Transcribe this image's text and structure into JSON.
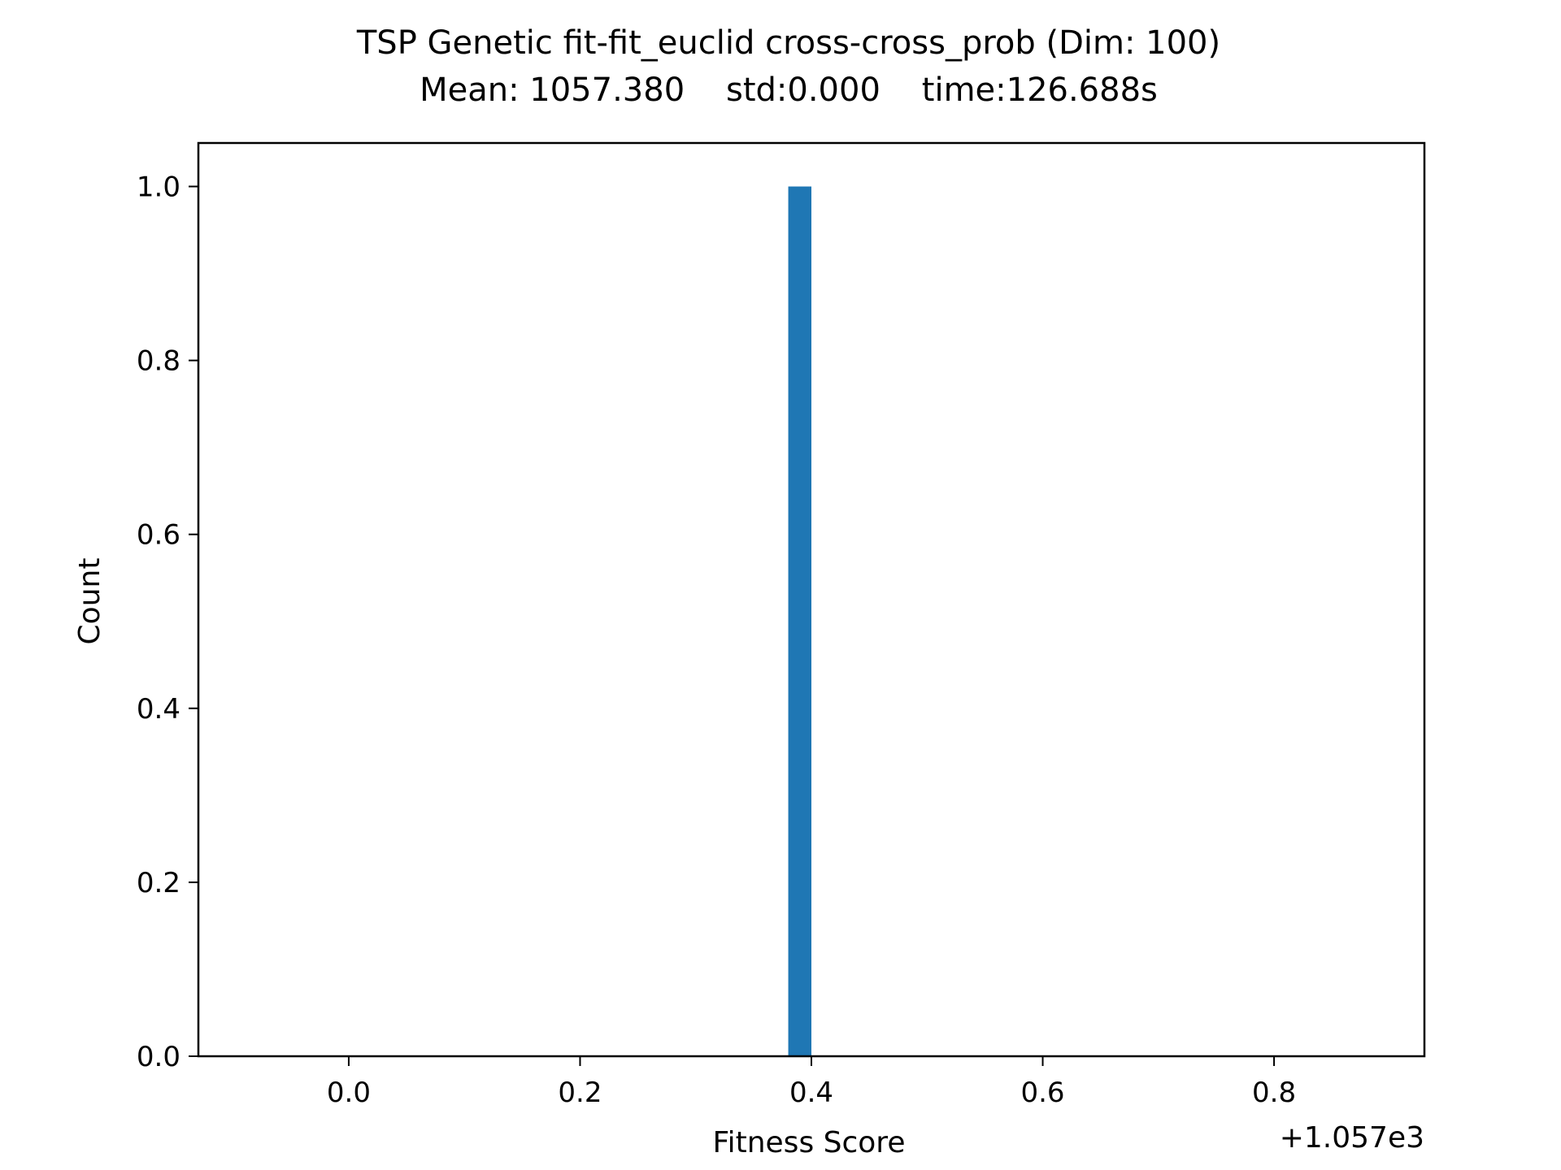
{
  "chart_data": {
    "type": "bar",
    "title": "TSP Genetic fit-fit_euclid cross-cross_prob (Dim: 100)",
    "subtitle": "Mean: 1057.380    std:0.000    time:126.688s",
    "xlabel": "Fitness Score",
    "ylabel": "Count",
    "x_offset_label": "+1.057e3",
    "xlim": [
      -0.13,
      0.93
    ],
    "ylim": [
      0,
      1.05
    ],
    "x_ticks": [
      0.0,
      0.2,
      0.4,
      0.6,
      0.8
    ],
    "x_tick_labels": [
      "0.0",
      "0.2",
      "0.4",
      "0.6",
      "0.8"
    ],
    "y_ticks": [
      0.0,
      0.2,
      0.4,
      0.6,
      0.8,
      1.0
    ],
    "y_tick_labels": [
      "0.0",
      "0.2",
      "0.4",
      "0.6",
      "0.8",
      "1.0"
    ],
    "bins": [
      {
        "x0": 0.38,
        "x1": 0.4,
        "count": 1
      }
    ],
    "bar_color": "#1f77b4",
    "grid": false,
    "legend": "none"
  }
}
